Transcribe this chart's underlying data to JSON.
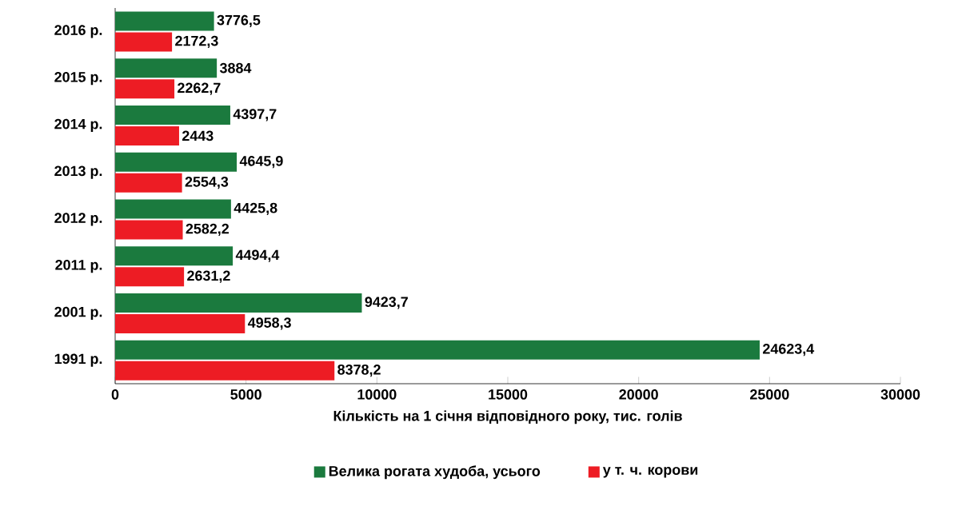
{
  "chart_data": {
    "type": "bar",
    "orientation": "horizontal",
    "categories": [
      "2016 р.",
      "2015 р.",
      "2014 р.",
      "2013 р.",
      "2012 р.",
      "2011 р.",
      "2001 р.",
      "1991 р."
    ],
    "series": [
      {
        "name": "Велика рогата худоба, усього",
        "color": "#1b7a3e",
        "values": [
          3776.5,
          3884,
          4397.7,
          4645.9,
          4425.8,
          4494.4,
          9423.7,
          24623.4
        ],
        "value_labels": [
          "3776,5",
          "3884",
          "4397,7",
          "4645,9",
          "4425,8",
          "4494,4",
          "9423,7",
          "24623,4"
        ]
      },
      {
        "name": "у т. ч. корови",
        "color": "#ed1c24",
        "values": [
          2172.3,
          2262.7,
          2443,
          2554.3,
          2582.2,
          2631.2,
          4958.3,
          8378.2
        ],
        "value_labels": [
          "2172,3",
          "2262,7",
          "2443",
          "2554,3",
          "2582,2",
          "2631,2",
          "4958,3",
          "8378,2"
        ]
      }
    ],
    "xlim": [
      0,
      30000
    ],
    "xticks": [
      0,
      5000,
      10000,
      15000,
      20000,
      25000,
      30000
    ],
    "xlabel": "Кількість на 1 січня відповідного року, тис. голів",
    "legend": "bottom"
  }
}
